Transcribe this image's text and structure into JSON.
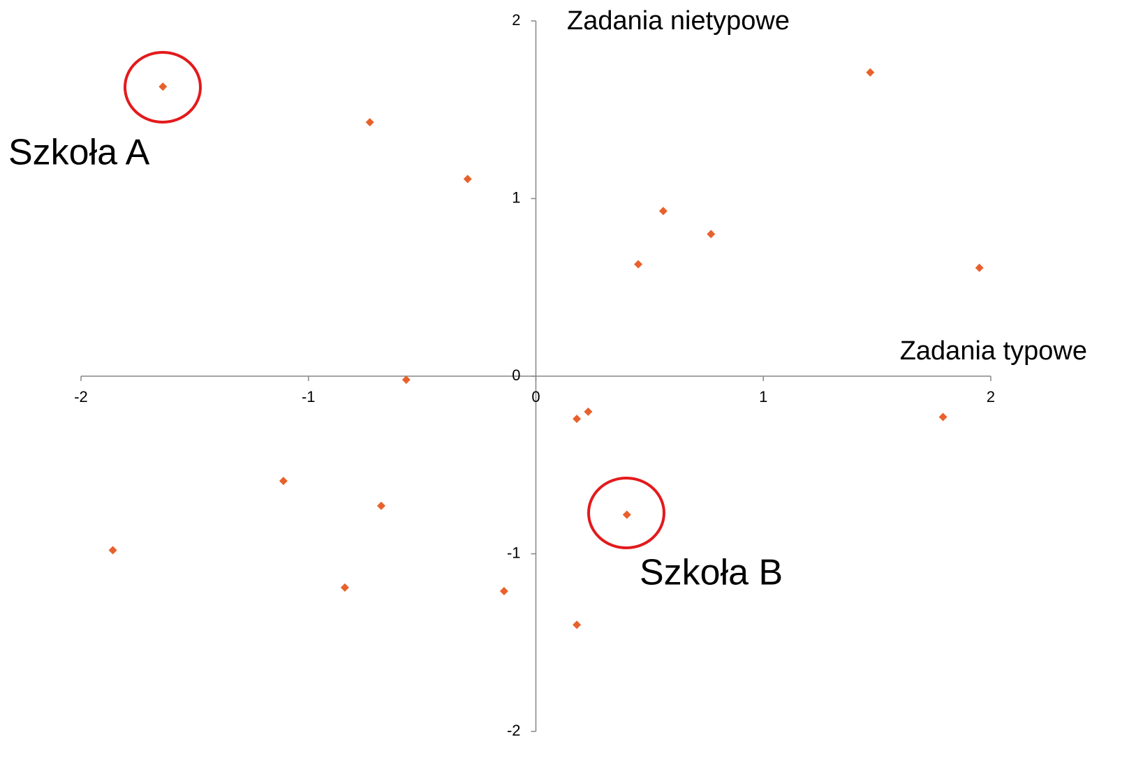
{
  "chart_data": {
    "type": "scatter",
    "x_title": "Zadania typowe",
    "y_title": "Zadania nietypowe",
    "annotations": [
      "Szkoła A",
      "Szkoła B"
    ],
    "x": [
      -1.64,
      -0.73,
      -0.3,
      1.47,
      0.56,
      0.77,
      0.45,
      1.95,
      -0.57,
      0.18,
      0.23,
      1.79,
      -1.11,
      -0.68,
      0.4,
      -1.86,
      -0.84,
      -0.14,
      0.18
    ],
    "values": [
      1.63,
      1.43,
      1.11,
      1.71,
      0.93,
      0.8,
      0.63,
      0.61,
      -0.02,
      -0.24,
      -0.2,
      -0.23,
      -0.59,
      -0.73,
      -0.78,
      -0.98,
      -1.19,
      -1.21,
      -1.4
    ],
    "color": "#e8612c",
    "xlim": [
      -2,
      2
    ],
    "xticks": [
      -2,
      -1,
      0,
      1,
      2
    ],
    "ylim": [
      -2,
      2
    ],
    "yticks": [
      -2,
      -1,
      0,
      1,
      2
    ]
  }
}
